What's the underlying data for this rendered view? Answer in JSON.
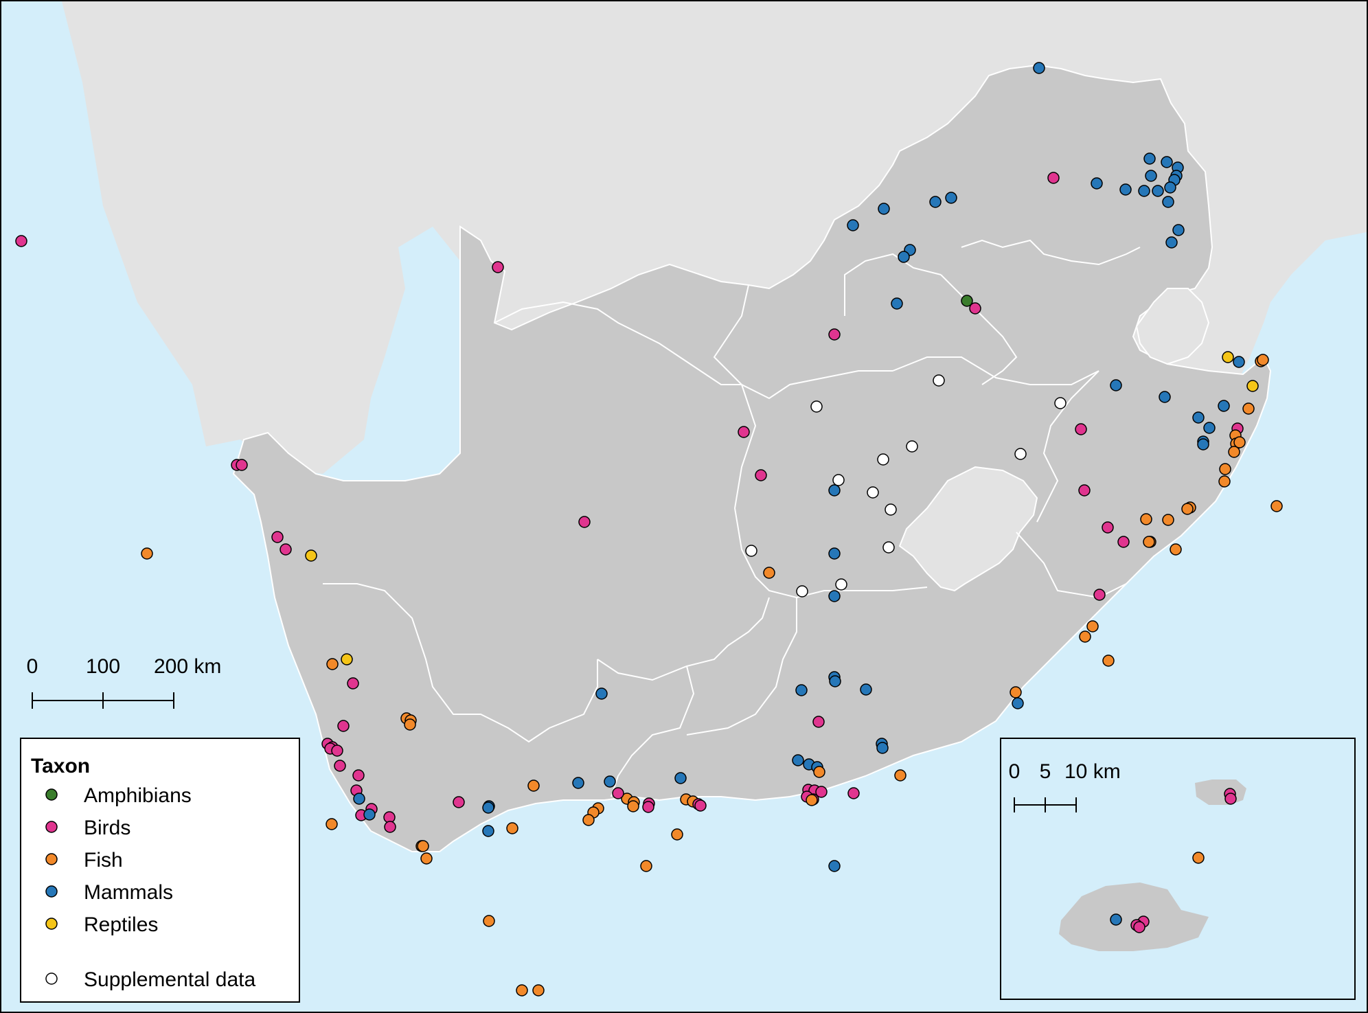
{
  "legend": {
    "title": "Taxon",
    "items": [
      {
        "label": "Amphibians",
        "color": "#3a7d2c"
      },
      {
        "label": "Birds",
        "color": "#e0358f"
      },
      {
        "label": "Fish",
        "color": "#f2892a"
      },
      {
        "label": "Mammals",
        "color": "#2677b8"
      },
      {
        "label": "Reptiles",
        "color": "#f5c518"
      },
      {
        "label": "Supplemental data",
        "color": "#ffffff"
      }
    ]
  },
  "scale_main": {
    "labels": [
      "0",
      "100",
      "200 km"
    ]
  },
  "scale_inset": {
    "labels": [
      "0",
      "5",
      "10 km"
    ]
  },
  "colors": {
    "ocean": "#d4eefa",
    "land_main": "#c8c8c8",
    "land_other": "#e3e3e3",
    "border": "#ffffff"
  }
}
